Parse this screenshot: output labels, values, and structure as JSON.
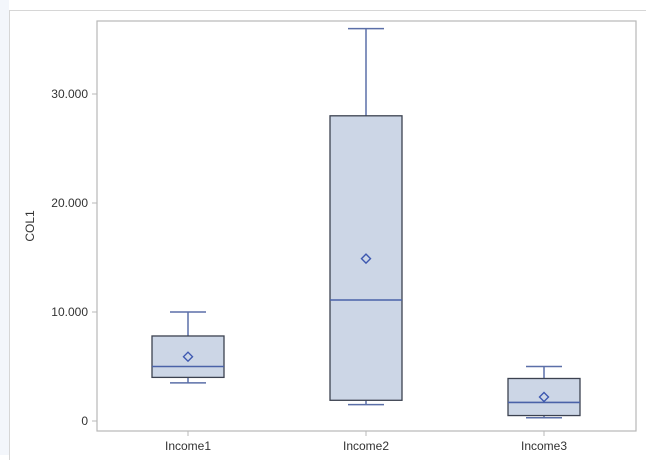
{
  "chart_data": {
    "type": "box",
    "title": "",
    "xlabel": "",
    "ylabel": "COL1",
    "ylim": [
      -800,
      36700
    ],
    "yticks": [
      0,
      10000,
      20000,
      30000
    ],
    "ytick_labels": [
      "0",
      "10.000",
      "20.000",
      "30.000"
    ],
    "categories": [
      "Income1",
      "Income2",
      "Income3"
    ],
    "grid": false,
    "legend": null,
    "series": [
      {
        "name": "Income1",
        "whisker_low": 3500,
        "q1": 4000,
        "median": 5000,
        "mean": 5900,
        "q3": 7800,
        "whisker_high": 10000
      },
      {
        "name": "Income2",
        "whisker_low": 1500,
        "q1": 1900,
        "median": 11100,
        "mean": 14900,
        "q3": 28000,
        "whisker_high": 36000
      },
      {
        "name": "Income3",
        "whisker_low": 300,
        "q1": 500,
        "median": 1700,
        "mean": 2200,
        "q3": 3900,
        "whisker_high": 5000
      }
    ],
    "colors": {
      "box_fill": "#ccd6e6",
      "box_border": "#3c4250",
      "whisker": "#5b6fa8",
      "median": "#4a62a8",
      "mean_marker": "#3d58b0",
      "axis": "#b8b8b8"
    }
  }
}
